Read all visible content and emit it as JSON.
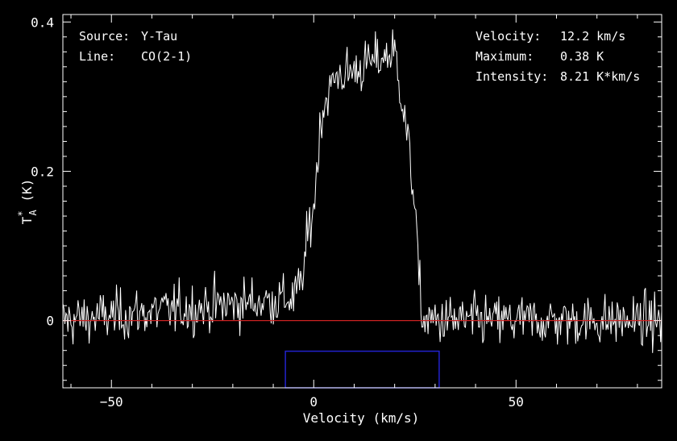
{
  "info": {
    "source_label": "Source:",
    "source_value": "Y-Tau",
    "line_label": "Line:",
    "line_value": "CO(2-1)",
    "velocity_label": "Velocity:",
    "velocity_value": "12.2 km/s",
    "maximum_label": "Maximum:",
    "maximum_value": "0.38 K",
    "intensity_label": "Intensity:",
    "intensity_value": "8.21 K*km/s"
  },
  "colors": {
    "background": "#000000",
    "spectrum": "#ffffff",
    "baseline": "#cc2222",
    "window": "#2222cc"
  },
  "chart_data": {
    "type": "line",
    "xlabel": "Velocity (km/s)",
    "ylabel_main": "T",
    "ylabel_sup": "*",
    "ylabel_sub": "A",
    "ylabel_unit": " (K)",
    "xlim": [
      -62,
      86
    ],
    "ylim": [
      -0.09,
      0.41
    ],
    "x_ticks": [
      -50,
      0,
      50
    ],
    "x_tick_labels": [
      "−50",
      "0",
      "50"
    ],
    "y_ticks": [
      0,
      0.2,
      0.4
    ],
    "y_tick_labels": [
      "0",
      "0.2",
      "0.4"
    ],
    "baseline": 0,
    "fit_window": {
      "x_start": -7,
      "x_end": 31,
      "y_top": -0.041
    },
    "series": [
      {
        "profile_x": [
          -62,
          -5,
          -3,
          -1,
          0,
          1,
          2,
          4,
          6,
          8,
          12,
          16,
          20,
          21,
          23,
          25,
          26,
          27,
          86
        ],
        "profile_y": [
          0,
          0.03,
          0.05,
          0.13,
          0.15,
          0.22,
          0.28,
          0.31,
          0.33,
          0.33,
          0.34,
          0.35,
          0.36,
          0.33,
          0.25,
          0.16,
          0.05,
          0,
          0
        ],
        "noise_rms": 0.017,
        "channel_width": 0.25
      }
    ]
  }
}
